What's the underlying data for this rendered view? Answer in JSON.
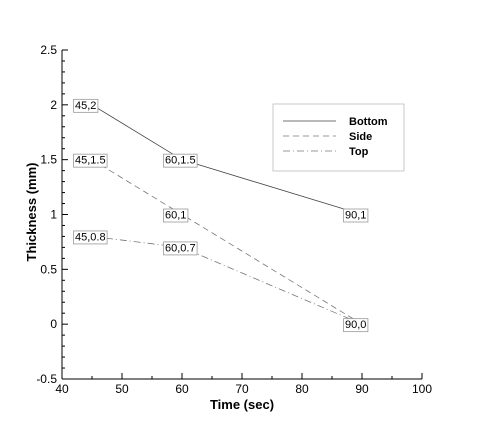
{
  "chart_data": {
    "type": "line",
    "xlabel": "Time (sec)",
    "ylabel": "Thickness (mm)",
    "xlim": [
      40,
      100
    ],
    "ylim": [
      -0.5,
      2.5
    ],
    "xticks": [
      "40",
      "50",
      "60",
      "70",
      "80",
      "90",
      "100"
    ],
    "yticks": [
      "-0.5",
      "0",
      "0.5",
      "1",
      "1.5",
      "2",
      "2.5"
    ],
    "grid": false,
    "legend_position": "top-right",
    "series": [
      {
        "name": "Bottom",
        "style": "solid",
        "x": [
          45,
          60,
          90
        ],
        "y": [
          2,
          1.5,
          1
        ]
      },
      {
        "name": "Side",
        "style": "dashed",
        "x": [
          45,
          60,
          90
        ],
        "y": [
          1.5,
          1,
          0
        ]
      },
      {
        "name": "Top",
        "style": "dashdot",
        "x": [
          45,
          60,
          90
        ],
        "y": [
          0.8,
          0.7,
          0
        ]
      }
    ],
    "annotations": [
      {
        "text": "45,2",
        "x": 45,
        "y": 2
      },
      {
        "text": "60,1.5",
        "x": 60,
        "y": 1.5
      },
      {
        "text": "90,1",
        "x": 90,
        "y": 1
      },
      {
        "text": "45,1.5",
        "x": 45,
        "y": 1.5
      },
      {
        "text": "60,1",
        "x": 60,
        "y": 1
      },
      {
        "text": "45,0.8",
        "x": 45,
        "y": 0.8
      },
      {
        "text": "60,0.7",
        "x": 60,
        "y": 0.7
      },
      {
        "text": "90,0",
        "x": 90,
        "y": 0
      }
    ]
  }
}
